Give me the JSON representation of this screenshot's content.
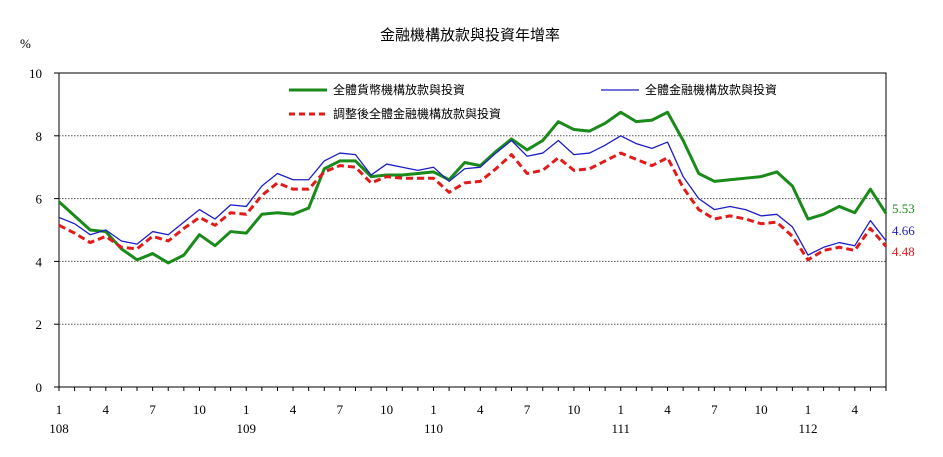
{
  "chart_data": {
    "type": "line",
    "title": "金融機構放款與投資年增率",
    "ylabel": "%",
    "ylim": [
      0,
      10
    ],
    "yticks": [
      0,
      2,
      4,
      6,
      8,
      10
    ],
    "grid": "horizontal dotted",
    "legend_position": "top",
    "x_tick_labels": [
      "1",
      "4",
      "7",
      "10",
      "1",
      "4",
      "7",
      "10",
      "1",
      "4",
      "7",
      "10",
      "1",
      "4",
      "7",
      "10",
      "1",
      "4"
    ],
    "x_tick_indices": [
      0,
      3,
      6,
      9,
      12,
      15,
      18,
      21,
      24,
      27,
      30,
      33,
      36,
      39,
      42,
      45,
      48,
      51
    ],
    "year_labels": [
      {
        "label": "108",
        "index": 0
      },
      {
        "label": "109",
        "index": 12
      },
      {
        "label": "110",
        "index": 24
      },
      {
        "label": "111",
        "index": 36
      },
      {
        "label": "112",
        "index": 48
      }
    ],
    "series": [
      {
        "name": "全體貨幣機構放款與投資",
        "color": "#1a8a1a",
        "style": "solid-thick",
        "end_label": "5.53",
        "values": [
          5.9,
          5.45,
          5.0,
          4.95,
          4.4,
          4.05,
          4.25,
          3.95,
          4.2,
          4.85,
          4.5,
          4.95,
          4.9,
          5.5,
          5.55,
          5.5,
          5.7,
          6.95,
          7.2,
          7.2,
          6.7,
          6.75,
          6.75,
          6.8,
          6.85,
          6.6,
          7.15,
          7.05,
          7.5,
          7.9,
          7.55,
          7.85,
          8.45,
          8.2,
          8.15,
          8.4,
          8.75,
          8.45,
          8.5,
          8.75,
          7.85,
          6.8,
          6.55,
          6.6,
          6.65,
          6.7,
          6.85,
          6.4,
          5.35,
          5.5,
          5.75,
          5.55,
          6.3,
          5.53
        ]
      },
      {
        "name": "全體金融機構放款與投資",
        "color": "#1e1ec8",
        "style": "solid-thin",
        "end_label": "4.66",
        "values": [
          5.4,
          5.2,
          4.85,
          5.0,
          4.65,
          4.55,
          4.95,
          4.85,
          5.25,
          5.65,
          5.35,
          5.8,
          5.75,
          6.4,
          6.8,
          6.6,
          6.6,
          7.2,
          7.45,
          7.4,
          6.75,
          7.1,
          7.0,
          6.9,
          7.0,
          6.55,
          6.95,
          7.0,
          7.45,
          7.85,
          7.35,
          7.45,
          7.85,
          7.4,
          7.45,
          7.7,
          8.0,
          7.75,
          7.6,
          7.8,
          6.7,
          6.0,
          5.65,
          5.75,
          5.65,
          5.45,
          5.5,
          5.1,
          4.2,
          4.45,
          4.6,
          4.5,
          5.3,
          4.66
        ]
      },
      {
        "name": "調整後全體金融機構放款與投資",
        "color": "#e31a1a",
        "style": "dashed-thick",
        "end_label": "4.48",
        "values": [
          5.15,
          4.9,
          4.6,
          4.8,
          4.45,
          4.4,
          4.8,
          4.65,
          5.05,
          5.4,
          5.15,
          5.55,
          5.5,
          6.1,
          6.5,
          6.3,
          6.3,
          6.85,
          7.05,
          7.0,
          6.5,
          6.7,
          6.65,
          6.65,
          6.65,
          6.2,
          6.5,
          6.55,
          6.95,
          7.4,
          6.8,
          6.9,
          7.3,
          6.9,
          6.95,
          7.2,
          7.45,
          7.25,
          7.05,
          7.3,
          6.35,
          5.65,
          5.35,
          5.45,
          5.35,
          5.2,
          5.25,
          4.8,
          4.05,
          4.35,
          4.45,
          4.35,
          5.05,
          4.48
        ]
      }
    ]
  }
}
